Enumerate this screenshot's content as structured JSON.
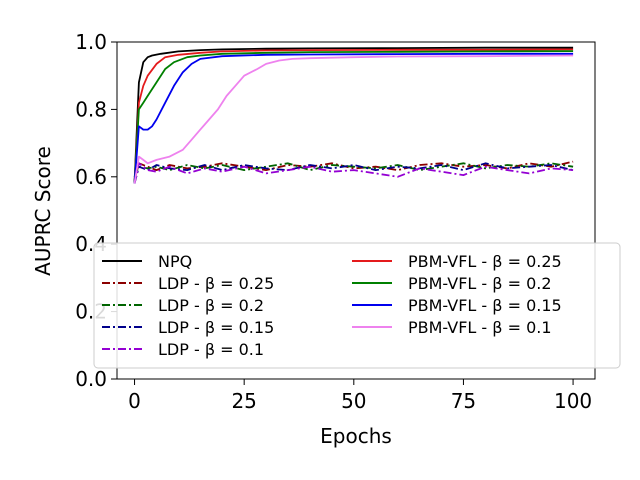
{
  "chart_data": {
    "type": "line",
    "xlabel": "Epochs",
    "ylabel": "AUPRC Score",
    "xlim": [
      -4,
      105
    ],
    "ylim": [
      0.0,
      1.0
    ],
    "x_ticks": [
      0,
      25,
      50,
      75,
      100
    ],
    "x_tick_labels": [
      "0",
      "25",
      "50",
      "75",
      "100"
    ],
    "y_ticks": [
      0.0,
      0.2,
      0.4,
      0.6,
      0.8,
      1.0
    ],
    "y_tick_labels": [
      "0.0",
      "0.2",
      "0.4",
      "0.6",
      "0.8",
      "1.0"
    ],
    "grid": false,
    "legend_position": "lower-center",
    "legend_columns": 2,
    "series": [
      {
        "name": "NPQ",
        "color": "#000000",
        "dash": "solid",
        "x": [
          0,
          1,
          2,
          3,
          4,
          6,
          10,
          15,
          20,
          30,
          40,
          60,
          80,
          100
        ],
        "y": [
          0.58,
          0.88,
          0.94,
          0.955,
          0.96,
          0.965,
          0.972,
          0.976,
          0.978,
          0.98,
          0.981,
          0.982,
          0.983,
          0.983
        ]
      },
      {
        "name": "LDP - β = 0.25",
        "color": "#8b0000",
        "dash": "dashdot",
        "x": [
          0,
          1,
          3,
          5,
          8,
          12,
          16,
          20,
          25,
          30,
          35,
          40,
          45,
          50,
          55,
          60,
          65,
          70,
          75,
          80,
          85,
          90,
          95,
          100
        ],
        "y": [
          0.59,
          0.64,
          0.63,
          0.62,
          0.635,
          0.625,
          0.63,
          0.64,
          0.63,
          0.62,
          0.635,
          0.63,
          0.64,
          0.625,
          0.63,
          0.62,
          0.635,
          0.64,
          0.63,
          0.635,
          0.625,
          0.64,
          0.63,
          0.645
        ]
      },
      {
        "name": "LDP - β = 0.2",
        "color": "#006400",
        "dash": "dashdot",
        "x": [
          0,
          1,
          3,
          5,
          8,
          12,
          16,
          20,
          25,
          30,
          35,
          40,
          45,
          50,
          55,
          60,
          65,
          70,
          75,
          80,
          85,
          90,
          95,
          100
        ],
        "y": [
          0.6,
          0.63,
          0.625,
          0.63,
          0.62,
          0.635,
          0.625,
          0.635,
          0.62,
          0.63,
          0.64,
          0.62,
          0.635,
          0.63,
          0.625,
          0.635,
          0.62,
          0.63,
          0.64,
          0.625,
          0.635,
          0.63,
          0.64,
          0.63
        ]
      },
      {
        "name": "LDP - β = 0.15",
        "color": "#00008b",
        "dash": "dashdot",
        "x": [
          0,
          1,
          3,
          5,
          8,
          12,
          16,
          20,
          25,
          30,
          35,
          40,
          45,
          50,
          55,
          60,
          65,
          70,
          75,
          80,
          85,
          90,
          95,
          100
        ],
        "y": [
          0.58,
          0.63,
          0.62,
          0.635,
          0.625,
          0.62,
          0.635,
          0.62,
          0.635,
          0.625,
          0.62,
          0.635,
          0.625,
          0.635,
          0.62,
          0.63,
          0.625,
          0.635,
          0.62,
          0.64,
          0.625,
          0.63,
          0.635,
          0.62
        ]
      },
      {
        "name": "LDP - β = 0.1",
        "color": "#9400d3",
        "dash": "dashdot",
        "x": [
          0,
          1,
          3,
          5,
          8,
          12,
          16,
          20,
          25,
          30,
          35,
          40,
          45,
          50,
          55,
          60,
          65,
          70,
          75,
          80,
          85,
          90,
          95,
          100
        ],
        "y": [
          0.58,
          0.64,
          0.62,
          0.615,
          0.63,
          0.61,
          0.625,
          0.615,
          0.63,
          0.61,
          0.62,
          0.63,
          0.615,
          0.62,
          0.61,
          0.6,
          0.625,
          0.615,
          0.605,
          0.63,
          0.62,
          0.61,
          0.625,
          0.62
        ]
      },
      {
        "name": "PBM-VFL - β = 0.25",
        "color": "#e41a1c",
        "dash": "solid",
        "x": [
          0,
          1,
          2,
          3,
          5,
          7,
          10,
          15,
          20,
          30,
          40,
          60,
          80,
          100
        ],
        "y": [
          0.58,
          0.82,
          0.87,
          0.9,
          0.935,
          0.955,
          0.962,
          0.968,
          0.972,
          0.975,
          0.976,
          0.977,
          0.977,
          0.978
        ]
      },
      {
        "name": "PBM-VFL - β = 0.2",
        "color": "#008000",
        "dash": "solid",
        "x": [
          0,
          1,
          2,
          3,
          5,
          7,
          9,
          12,
          15,
          20,
          30,
          40,
          60,
          80,
          100
        ],
        "y": [
          0.58,
          0.8,
          0.82,
          0.84,
          0.88,
          0.92,
          0.94,
          0.955,
          0.96,
          0.965,
          0.968,
          0.97,
          0.971,
          0.972,
          0.973
        ]
      },
      {
        "name": "PBM-VFL - β = 0.15",
        "color": "#0000ee",
        "dash": "solid",
        "x": [
          0,
          1,
          2,
          3,
          4,
          5,
          7,
          9,
          11,
          13,
          15,
          20,
          30,
          40,
          60,
          80,
          100
        ],
        "y": [
          0.58,
          0.75,
          0.74,
          0.74,
          0.75,
          0.77,
          0.82,
          0.87,
          0.91,
          0.935,
          0.95,
          0.958,
          0.962,
          0.963,
          0.964,
          0.965,
          0.965
        ]
      },
      {
        "name": "PBM-VFL - β = 0.1",
        "color": "#ee82ee",
        "dash": "solid",
        "x": [
          0,
          1,
          2,
          3,
          5,
          8,
          11,
          13,
          15,
          17,
          19,
          21,
          23,
          25,
          28,
          30,
          33,
          36,
          40,
          50,
          60,
          80,
          100
        ],
        "y": [
          0.58,
          0.66,
          0.65,
          0.64,
          0.65,
          0.66,
          0.68,
          0.71,
          0.74,
          0.77,
          0.8,
          0.84,
          0.87,
          0.9,
          0.92,
          0.935,
          0.945,
          0.95,
          0.952,
          0.955,
          0.957,
          0.958,
          0.96
        ]
      }
    ]
  }
}
